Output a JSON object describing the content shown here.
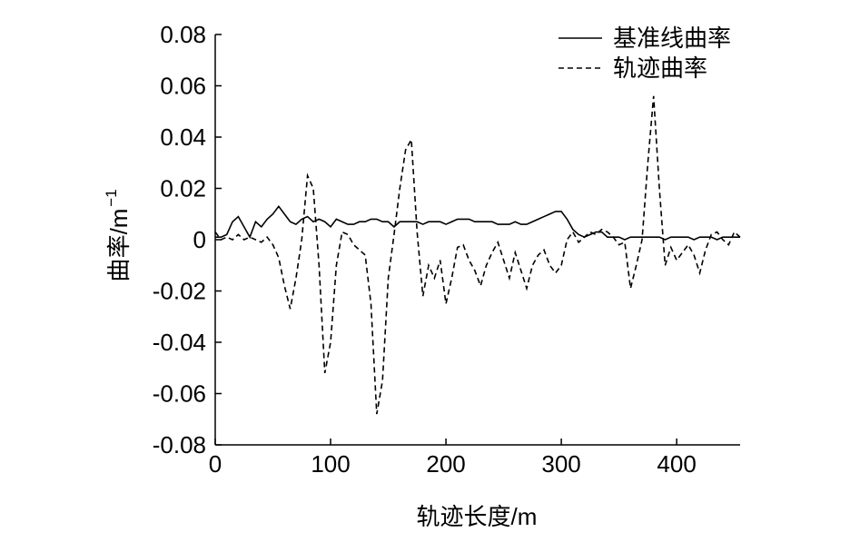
{
  "chart_data": {
    "type": "line",
    "x_label": "轨迹长度/m",
    "y_label": {
      "text": "曲率/m",
      "superscript": "−1"
    },
    "x": [
      0,
      5,
      10,
      15,
      20,
      25,
      30,
      35,
      40,
      45,
      50,
      55,
      60,
      65,
      70,
      75,
      80,
      85,
      90,
      95,
      100,
      105,
      110,
      115,
      120,
      125,
      130,
      135,
      140,
      145,
      150,
      155,
      160,
      165,
      170,
      175,
      180,
      185,
      190,
      195,
      200,
      205,
      210,
      215,
      220,
      225,
      230,
      235,
      240,
      245,
      250,
      255,
      260,
      265,
      270,
      275,
      280,
      285,
      290,
      295,
      300,
      305,
      310,
      315,
      320,
      325,
      330,
      335,
      340,
      345,
      350,
      355,
      360,
      365,
      370,
      375,
      380,
      385,
      390,
      395,
      400,
      405,
      410,
      415,
      420,
      425,
      430,
      435,
      440,
      445,
      450,
      455
    ],
    "series": [
      {
        "name": "基准线曲率",
        "color": "#000000",
        "dash": "solid",
        "values": [
          0.001,
          0.001,
          0.002,
          0.007,
          0.009,
          0.005,
          0.001,
          0.007,
          0.005,
          0.008,
          0.01,
          0.013,
          0.01,
          0.007,
          0.006,
          0.008,
          0.009,
          0.007,
          0.008,
          0.007,
          0.005,
          0.008,
          0.007,
          0.006,
          0.006,
          0.007,
          0.007,
          0.008,
          0.008,
          0.007,
          0.007,
          0.005,
          0.007,
          0.007,
          0.007,
          0.007,
          0.006,
          0.007,
          0.007,
          0.007,
          0.006,
          0.007,
          0.008,
          0.008,
          0.008,
          0.007,
          0.007,
          0.007,
          0.007,
          0.006,
          0.006,
          0.006,
          0.007,
          0.006,
          0.006,
          0.007,
          0.008,
          0.009,
          0.01,
          0.011,
          0.011,
          0.008,
          0.004,
          0.002,
          0.001,
          0.002,
          0.003,
          0.003,
          0.001,
          0.001,
          0.001,
          0.0,
          0.001,
          0.001,
          0.001,
          0.001,
          0.001,
          0.001,
          0.0,
          0.001,
          0.001,
          0.001,
          0.001,
          0.0,
          0.001,
          0.001,
          0.001,
          0.0,
          0.001,
          0.001,
          0.001,
          0.001
        ]
      },
      {
        "name": "轨迹曲率",
        "color": "#000000",
        "dash": "dashed",
        "values": [
          0.003,
          0.0,
          0.001,
          0.0,
          0.002,
          0.0,
          0.001,
          0.0,
          -0.001,
          0.001,
          -0.002,
          -0.007,
          -0.018,
          -0.027,
          -0.015,
          0.0,
          0.025,
          0.02,
          -0.01,
          -0.052,
          -0.04,
          -0.01,
          0.003,
          0.002,
          -0.002,
          -0.004,
          -0.006,
          -0.025,
          -0.068,
          -0.055,
          -0.015,
          0.002,
          0.02,
          0.035,
          0.039,
          0.003,
          -0.022,
          -0.01,
          -0.015,
          -0.008,
          -0.025,
          -0.015,
          -0.003,
          -0.002,
          -0.008,
          -0.012,
          -0.018,
          -0.01,
          -0.005,
          -0.001,
          -0.008,
          -0.015,
          -0.005,
          -0.012,
          -0.019,
          -0.01,
          -0.006,
          -0.004,
          -0.01,
          -0.013,
          -0.01,
          0.0,
          0.003,
          -0.001,
          0.001,
          0.003,
          0.002,
          0.004,
          0.003,
          0.001,
          -0.002,
          -0.001,
          -0.019,
          -0.01,
          0.0,
          0.03,
          0.056,
          0.02,
          -0.01,
          -0.003,
          -0.008,
          -0.005,
          -0.002,
          -0.006,
          -0.013,
          -0.004,
          0.002,
          0.003,
          0.0,
          -0.002,
          0.003,
          0.001
        ]
      }
    ],
    "xlim": [
      0,
      455
    ],
    "xticks": [
      0,
      100,
      200,
      300,
      400
    ],
    "ylim": [
      -0.08,
      0.08
    ],
    "yticks": [
      -0.08,
      -0.06,
      -0.04,
      -0.02,
      0,
      0.02,
      0.04,
      0.06,
      0.08
    ],
    "grid": false,
    "legend": "upper right"
  }
}
